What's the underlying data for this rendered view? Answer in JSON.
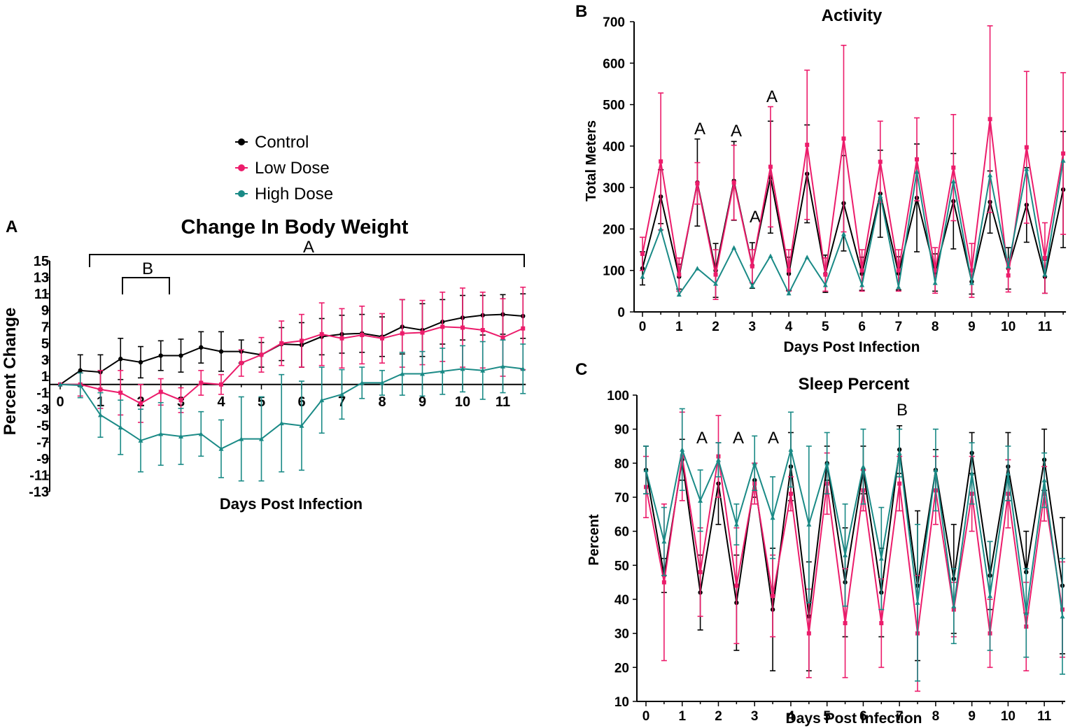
{
  "colors": {
    "control": "#000000",
    "low": "#ec1c6b",
    "high": "#1a8a86"
  },
  "legend": [
    {
      "key": "control",
      "label": "Control"
    },
    {
      "key": "low",
      "label": "Low Dose"
    },
    {
      "key": "high",
      "label": "High Dose"
    }
  ],
  "panels": {
    "A": {
      "letter": "A",
      "title": "Change In  Body Weight",
      "ylabel": "Percent Change",
      "xlabel": "Days Post Infection",
      "sig_long": "A",
      "sig_short": "B"
    },
    "B": {
      "letter": "B",
      "title": "Activity",
      "ylabel": "Total Meters",
      "xlabel": "Days Post Infection",
      "sig_labels": [
        "A",
        "A",
        "A",
        "A"
      ]
    },
    "C": {
      "letter": "C",
      "title": "Sleep Percent",
      "ylabel": "Percent",
      "xlabel": "Days Post Infection",
      "sig_labels": [
        "A",
        "A",
        "A",
        "B"
      ]
    }
  },
  "chart_data": [
    {
      "id": "A",
      "type": "line",
      "title": "Change In  Body Weight",
      "xlabel": "Days Post Infection",
      "ylabel": "Percent Change",
      "xlim": [
        0,
        11.5
      ],
      "ylim": [
        -13,
        15
      ],
      "yticks": [
        15,
        13,
        11,
        9,
        7,
        5,
        3,
        1,
        -1,
        -3,
        -5,
        -7,
        -9,
        -11,
        -13
      ],
      "xticks": [
        0,
        1,
        2,
        3,
        4,
        5,
        6,
        7,
        8,
        9,
        10,
        11
      ],
      "x": [
        0,
        0.5,
        1,
        1.5,
        2,
        2.5,
        3,
        3.5,
        4,
        4.5,
        5,
        5.5,
        6,
        6.5,
        7,
        7.5,
        8,
        8.5,
        9,
        9.5,
        10,
        10.5,
        11,
        11.5
      ],
      "series": [
        {
          "name": "Control",
          "key": "control",
          "values": [
            0,
            1.7,
            1.5,
            3.1,
            2.7,
            3.5,
            3.5,
            4.5,
            4,
            4,
            3.6,
            4.9,
            4.8,
            5.8,
            6.1,
            6.2,
            5.8,
            7,
            6.6,
            7.6,
            8.1,
            8.4,
            8.5,
            8.3
          ],
          "errors": [
            0,
            1.9,
            2.1,
            2.5,
            1.9,
            1.8,
            2.0,
            1.9,
            2.4,
            1.4,
            1.5,
            2.0,
            2.7,
            2.2,
            2.3,
            2.3,
            2.4,
            3.3,
            3.2,
            2.7,
            2.7,
            2.4,
            2.4,
            2.7
          ]
        },
        {
          "name": "Low Dose",
          "key": "low",
          "values": [
            0,
            0,
            -0.6,
            -1,
            -2.3,
            -0.9,
            -1.9,
            0.2,
            0,
            2.6,
            3.6,
            5,
            5.3,
            6.1,
            5.6,
            6,
            5.6,
            6.2,
            6.3,
            7,
            6.9,
            6.6,
            5.7,
            6.8
          ],
          "errors": [
            0,
            1.4,
            2.3,
            2.7,
            2.3,
            1.6,
            1.5,
            1.5,
            1.2,
            1.6,
            2.1,
            2.7,
            3.2,
            3.8,
            3.6,
            3.5,
            3.0,
            4.1,
            3.9,
            4.2,
            4.8,
            4.6,
            4.7,
            5.0
          ]
        },
        {
          "name": "High Dose",
          "key": "high",
          "values": [
            0,
            -0.1,
            -3.7,
            -5.2,
            -6.8,
            -6,
            -6.3,
            -6,
            -7.8,
            -6.6,
            -6.6,
            -4.7,
            -5,
            -1.9,
            -1.2,
            0.2,
            0.2,
            1.3,
            1.3,
            1.6,
            1.9,
            1.7,
            2.2,
            1.9
          ],
          "errors": [
            0,
            1.5,
            2.7,
            3.3,
            3.8,
            3.8,
            3.4,
            2.7,
            3.5,
            5.1,
            5.1,
            5.9,
            5.4,
            4.0,
            3.0,
            1.9,
            1.5,
            2.6,
            2.7,
            2.8,
            2.8,
            3.5,
            3.2,
            3.0
          ]
        }
      ]
    },
    {
      "id": "B",
      "type": "line",
      "title": "Activity",
      "xlabel": "Days Post Infection",
      "ylabel": "Total Meters",
      "xlim": [
        0,
        11.5
      ],
      "ylim": [
        0,
        700
      ],
      "yticks": [
        0,
        100,
        200,
        300,
        400,
        500,
        600,
        700
      ],
      "xticks": [
        0,
        1,
        2,
        3,
        4,
        5,
        6,
        7,
        8,
        9,
        10,
        11
      ],
      "x": [
        0,
        0.5,
        1,
        1.5,
        2,
        2.5,
        3,
        3.5,
        4,
        4.5,
        5,
        5.5,
        6,
        6.5,
        7,
        7.5,
        8,
        8.5,
        9,
        9.5,
        10,
        10.5,
        11,
        11.5
      ],
      "series": [
        {
          "name": "Control",
          "key": "control",
          "values": [
            105,
            278,
            85,
            312,
            100,
            316,
            112,
            325,
            92,
            333,
            92,
            262,
            92,
            285,
            93,
            275,
            95,
            267,
            73,
            265,
            105,
            258,
            85,
            295
          ],
          "errors": [
            40,
            65,
            30,
            105,
            65,
            95,
            55,
            135,
            40,
            118,
            45,
            115,
            40,
            105,
            40,
            130,
            45,
            115,
            30,
            75,
            50,
            90,
            40,
            140
          ]
        },
        {
          "name": "Low Dose",
          "key": "low",
          "values": [
            140,
            363,
            90,
            310,
            90,
            312,
            110,
            350,
            100,
            403,
            90,
            418,
            100,
            362,
            100,
            368,
            100,
            348,
            100,
            465,
            88,
            397,
            130,
            382
          ],
          "errors": [
            40,
            165,
            40,
            50,
            60,
            90,
            40,
            145,
            50,
            180,
            40,
            225,
            50,
            98,
            50,
            100,
            55,
            128,
            65,
            225,
            40,
            183,
            85,
            195
          ]
        },
        {
          "name": "High Dose",
          "key": "high",
          "values": [
            85,
            200,
            42,
            105,
            68,
            155,
            62,
            135,
            45,
            132,
            65,
            188,
            65,
            280,
            60,
            338,
            70,
            315,
            70,
            330,
            110,
            345,
            90,
            365
          ]
        }
      ]
    },
    {
      "id": "C",
      "type": "line",
      "title": "Sleep Percent",
      "xlabel": "Days Post Infection",
      "ylabel": "Percent",
      "xlim": [
        0,
        11.5
      ],
      "ylim": [
        10,
        100
      ],
      "yticks": [
        10,
        20,
        30,
        40,
        50,
        60,
        70,
        80,
        90,
        100
      ],
      "xticks": [
        0,
        1,
        2,
        3,
        4,
        5,
        6,
        7,
        8,
        9,
        10,
        11
      ],
      "x": [
        0,
        0.5,
        1,
        1.5,
        2,
        2.5,
        3,
        3.5,
        4,
        4.5,
        5,
        5.5,
        6,
        6.5,
        7,
        7.5,
        8,
        8.5,
        9,
        9.5,
        10,
        10.5,
        11,
        11.5
      ],
      "series": [
        {
          "name": "Control",
          "key": "control",
          "values": [
            78,
            47,
            81,
            42,
            74,
            39,
            75,
            37,
            79,
            35,
            80,
            45,
            78,
            42,
            84,
            44,
            78,
            46,
            83,
            47,
            79,
            48,
            81,
            44
          ],
          "errors": [
            7,
            5,
            6,
            11,
            12,
            14,
            5,
            18,
            10,
            16,
            5,
            16,
            7,
            13,
            7,
            22,
            6,
            16,
            6,
            10,
            10,
            12,
            9,
            20
          ]
        },
        {
          "name": "Low Dose",
          "key": "low",
          "values": [
            73,
            45,
            82,
            48,
            82,
            44,
            74,
            41,
            71,
            30,
            74,
            33,
            72,
            33,
            74,
            30,
            72,
            37,
            71,
            30,
            71,
            32,
            71,
            37
          ],
          "errors": [
            9,
            23,
            13,
            13,
            12,
            17,
            6,
            12,
            5,
            13,
            9,
            16,
            6,
            13,
            8,
            17,
            10,
            8,
            11,
            10,
            10,
            13,
            8,
            14
          ]
        },
        {
          "name": "High Dose",
          "key": "high",
          "values": [
            78,
            57,
            84,
            69,
            81,
            62,
            80,
            64,
            84,
            62,
            80,
            53,
            79,
            52,
            83,
            39,
            78,
            38,
            77,
            41,
            77,
            36,
            75,
            35
          ],
          "errors": [
            7,
            10,
            12,
            9,
            5,
            6,
            8,
            12,
            11,
            23,
            9,
            15,
            11,
            15,
            7,
            23,
            12,
            11,
            9,
            16,
            8,
            13,
            8,
            17
          ]
        }
      ]
    }
  ]
}
